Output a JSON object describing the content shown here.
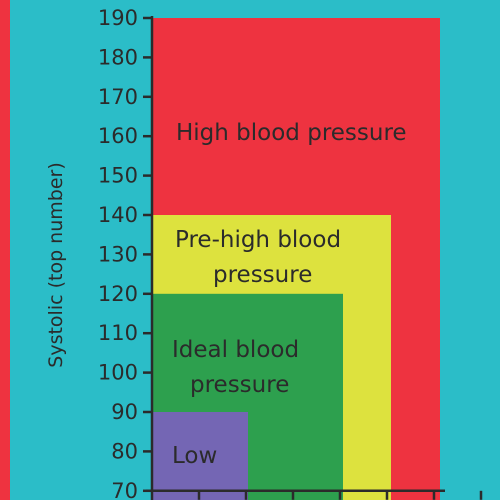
{
  "chart_data": {
    "type": "area",
    "ylabel": "Systolic (top number)",
    "y_ticks": [
      190,
      180,
      170,
      160,
      150,
      140,
      130,
      120,
      110,
      100,
      90,
      80,
      70
    ],
    "ylim": [
      70,
      190
    ],
    "x_ticks_count": 7,
    "zones": [
      {
        "name": "High blood pressure",
        "label_lines": [
          "High blood pressure"
        ],
        "systolic_max": 190,
        "color": "#ee3340"
      },
      {
        "name": "Pre-high blood pressure",
        "label_lines": [
          "Pre-high blood",
          "pressure"
        ],
        "systolic_max": 140,
        "color": "#dde23e"
      },
      {
        "name": "Ideal blood pressure",
        "label_lines": [
          "Ideal blood",
          "pressure"
        ],
        "systolic_max": 120,
        "color": "#2da04e"
      },
      {
        "name": "Low",
        "label_lines": [
          "Low"
        ],
        "systolic_max": 90,
        "color": "#7466b4"
      }
    ],
    "background_color": "#2bbdc8",
    "axis_color": "#2b2b2b",
    "edge_stripe_color": "#ee3340"
  }
}
